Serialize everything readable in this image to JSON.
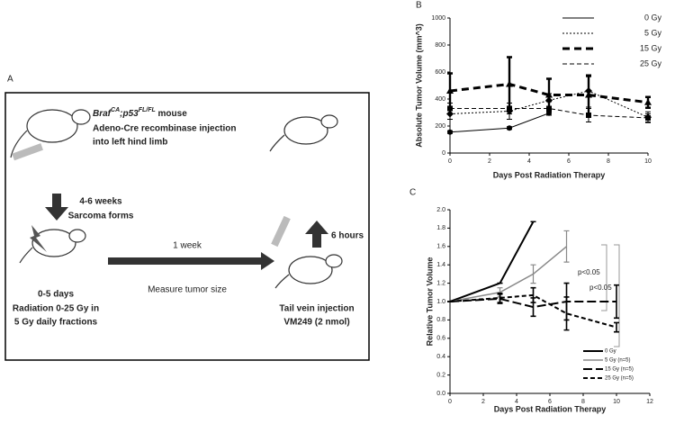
{
  "panel_a": {
    "label": "A",
    "genotype": {
      "gene1": "Braf",
      "sup1": "CA",
      "gene2": ";p53",
      "sup2": "FL/FL",
      "suffix": " mouse"
    },
    "step1": [
      "Adeno-Cre recombinase injection",
      "into left hind limb"
    ],
    "step2": [
      "4-6 weeks",
      "Sarcoma forms"
    ],
    "step3": [
      "0-5 days",
      "Radiation 0-25 Gy in",
      "5 Gy daily fractions"
    ],
    "step4": [
      "1 week",
      "Measure tumor size"
    ],
    "step5": [
      "Tail vein injection",
      "VM249 (2 nmol)"
    ],
    "step6": "6 hours"
  },
  "chart_data": [
    {
      "type": "line",
      "panel_label": "B",
      "x_label": "Days Post Radiation  Therapy",
      "y_label": "Absolute Tumor Volume (mm^3)",
      "xlim": [
        0,
        10
      ],
      "xticks": [
        0,
        2,
        4,
        6,
        8,
        10
      ],
      "ylim": [
        0,
        1000
      ],
      "yticks": [
        0,
        200,
        400,
        600,
        800,
        1000
      ],
      "legend": "top-right",
      "series": [
        {
          "name": "0 Gy",
          "color": "#000000",
          "line_style": "solid",
          "line_width": 1,
          "marker": "circle",
          "x": [
            0,
            3,
            5
          ],
          "values": [
            155,
            185,
            295
          ],
          "errors": [
            10,
            10,
            15
          ]
        },
        {
          "name": "5 Gy",
          "color": "#000000",
          "line_style": "dotted",
          "line_width": 1,
          "marker": "diamond",
          "x": [
            0,
            3,
            5,
            7,
            10
          ],
          "values": [
            290,
            310,
            390,
            460,
            265
          ],
          "errors": [
            40,
            60,
            50,
            120,
            40
          ]
        },
        {
          "name": "15 Gy",
          "color": "#000000",
          "line_style": "dashed",
          "line_width": 3,
          "marker": "triangle",
          "x": [
            0,
            3,
            5,
            7,
            10
          ],
          "values": [
            460,
            510,
            430,
            430,
            375
          ],
          "errors": [
            130,
            200,
            120,
            140,
            40
          ]
        },
        {
          "name": "25 Gy",
          "color": "#000000",
          "line_style": "short-dashed",
          "line_width": 1,
          "marker": "square",
          "x": [
            0,
            3,
            5,
            7,
            10
          ],
          "values": [
            330,
            330,
            330,
            280,
            260
          ],
          "errors": [
            40,
            40,
            50,
            50,
            30
          ]
        }
      ]
    },
    {
      "type": "line",
      "panel_label": "C",
      "x_label": "Days Post Radiation Therapy",
      "y_label": "Relative Tumor Volume",
      "xlim": [
        0,
        12
      ],
      "xticks": [
        0,
        2,
        4,
        6,
        8,
        10,
        12
      ],
      "ylim": [
        0,
        2
      ],
      "yticks": [
        {
          "value": 0,
          "label": "0.0"
        },
        0.2,
        0.4,
        0.6,
        0.8,
        {
          "value": 1,
          "label": "1.0"
        },
        1.2,
        1.4,
        1.6,
        1.8,
        {
          "value": 2,
          "label": "2.0"
        }
      ],
      "legend": "bottom-right",
      "annotations": [
        "p<0.05",
        "p<0.05"
      ],
      "series": [
        {
          "name": "0 Gy",
          "color": "#000000",
          "line_style": "solid",
          "line_width": 2,
          "marker": "none",
          "x": [
            0,
            3,
            5
          ],
          "values": [
            1.0,
            1.2,
            1.87
          ],
          "errors": [
            0,
            0,
            0
          ]
        },
        {
          "name": "5 Gy  (n=5)",
          "color": "#888888",
          "line_style": "solid",
          "line_width": 1.5,
          "marker": "none",
          "x": [
            0,
            3,
            5,
            7
          ],
          "values": [
            1.0,
            1.1,
            1.3,
            1.6
          ],
          "errors": [
            0,
            0.05,
            0.1,
            0.17
          ]
        },
        {
          "name": "15 Gy  (n=5)",
          "color": "#000000",
          "line_style": "long-dashed",
          "line_width": 2,
          "marker": "none",
          "x": [
            0,
            3,
            5,
            7,
            10
          ],
          "values": [
            1.0,
            1.03,
            0.94,
            1.0,
            1.0
          ],
          "errors": [
            0,
            0.05,
            0.1,
            0.2,
            0.18
          ]
        },
        {
          "name": "25 Gy  (n=5)",
          "color": "#000000",
          "line_style": "short-dashed",
          "line_width": 2,
          "marker": "none",
          "x": [
            0,
            3,
            5,
            7,
            10
          ],
          "values": [
            1.0,
            1.04,
            1.07,
            0.87,
            0.72
          ],
          "errors": [
            0,
            0.05,
            0.08,
            0.18,
            0.05
          ]
        }
      ]
    }
  ]
}
